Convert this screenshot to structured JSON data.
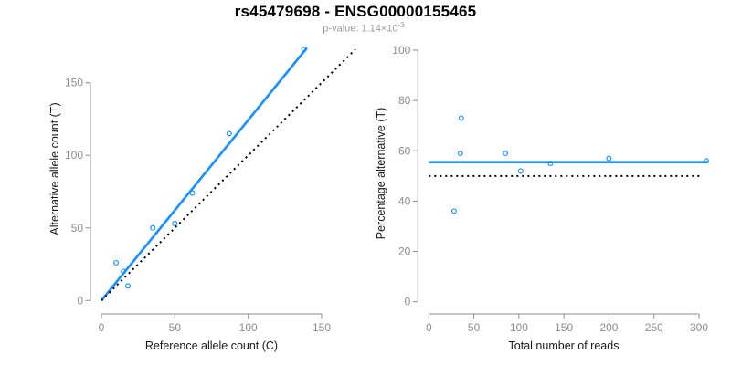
{
  "title": "rs45479698 - ENSG00000155465",
  "subtitle": {
    "text": "p-value: 1.14×10",
    "exponent": "-3"
  },
  "colors": {
    "accent_blue": "#1E90FF",
    "axis_gray": "#8C8C8C",
    "tick_text_gray": "#8C8C8C",
    "subtitle_gray": "#9A9A9A",
    "line_black": "#000000",
    "axis_title_black": "#1A1A1A"
  },
  "chart_data": [
    {
      "name": "ref-vs-alt-count",
      "type": "scatter",
      "xlabel": "Reference allele count (C)",
      "ylabel": "Alternative allele count (T)",
      "xlim": [
        0,
        150
      ],
      "ylim": [
        0,
        150
      ],
      "xticks": [
        0,
        50,
        100,
        150
      ],
      "yticks": [
        0,
        50,
        100,
        150
      ],
      "grid": false,
      "legend": null,
      "marker": "open-circle",
      "points": [
        [
          10,
          26
        ],
        [
          15,
          20
        ],
        [
          18,
          10
        ],
        [
          35,
          50
        ],
        [
          50,
          53
        ],
        [
          62,
          74
        ],
        [
          87,
          115
        ],
        [
          138,
          173
        ]
      ],
      "lines": [
        {
          "name": "fit-line",
          "style": "solid",
          "color_key": "accent_blue",
          "from": [
            0,
            0
          ],
          "to": [
            140,
            174
          ]
        },
        {
          "name": "identity-line",
          "style": "dotted",
          "color_key": "line_black",
          "from": [
            0,
            0
          ],
          "to": [
            173,
            173
          ]
        }
      ]
    },
    {
      "name": "reads-vs-percentage",
      "type": "scatter",
      "xlabel": "Total number of reads",
      "ylabel": "Percentage alternative (T)",
      "xlim": [
        0,
        300
      ],
      "ylim": [
        0,
        100
      ],
      "xticks": [
        0,
        50,
        100,
        150,
        200,
        250,
        300
      ],
      "yticks": [
        0,
        20,
        40,
        60,
        80,
        100
      ],
      "grid": false,
      "legend": null,
      "marker": "open-circle",
      "points": [
        [
          28,
          36
        ],
        [
          35,
          59
        ],
        [
          36,
          73
        ],
        [
          85,
          59
        ],
        [
          102,
          52
        ],
        [
          135,
          55
        ],
        [
          200,
          57
        ],
        [
          308,
          56
        ]
      ],
      "lines": [
        {
          "name": "mean-percentage-line",
          "style": "solid",
          "color_key": "accent_blue",
          "from": [
            0,
            55.5
          ],
          "to": [
            310,
            55.5
          ]
        },
        {
          "name": "null-50pct-line",
          "style": "dotted",
          "color_key": "line_black",
          "from": [
            0,
            50
          ],
          "to": [
            302,
            50
          ]
        }
      ]
    }
  ]
}
